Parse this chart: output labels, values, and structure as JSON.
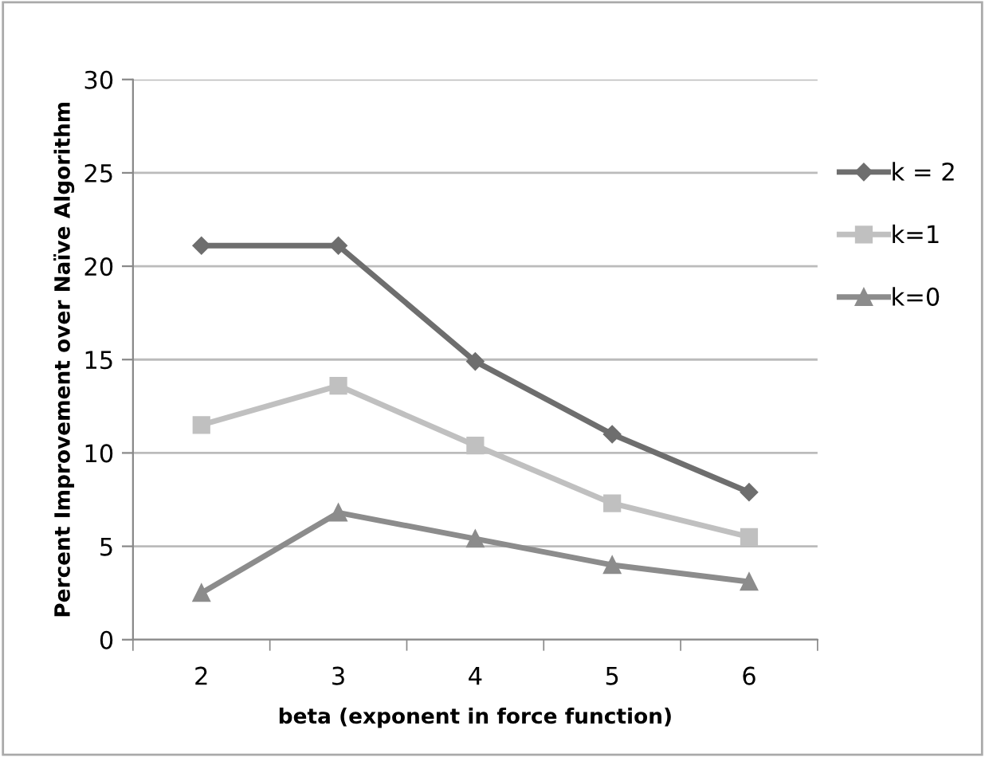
{
  "chart_data": {
    "type": "line",
    "xlabel": "beta (exponent in force function)",
    "ylabel": "Percent Improvement over Naïve Algorithm",
    "categories": [
      "2",
      "3",
      "4",
      "5",
      "6"
    ],
    "series": [
      {
        "name": "k = 2",
        "color": "#6e6e6e",
        "marker": "diamond",
        "values": [
          21.1,
          21.1,
          14.9,
          11.0,
          7.9
        ]
      },
      {
        "name": "k=1",
        "color": "#c0c0c0",
        "marker": "square",
        "values": [
          11.5,
          13.6,
          10.4,
          7.3,
          5.5
        ]
      },
      {
        "name": "k=0",
        "color": "#8c8c8c",
        "marker": "triangle",
        "values": [
          2.5,
          6.8,
          5.4,
          4.0,
          3.1
        ]
      }
    ],
    "ylim": [
      0,
      30
    ],
    "yticks": [
      0,
      5,
      10,
      15,
      20,
      25,
      30
    ],
    "grid": "y",
    "legend": "right",
    "line_style": "solid"
  }
}
